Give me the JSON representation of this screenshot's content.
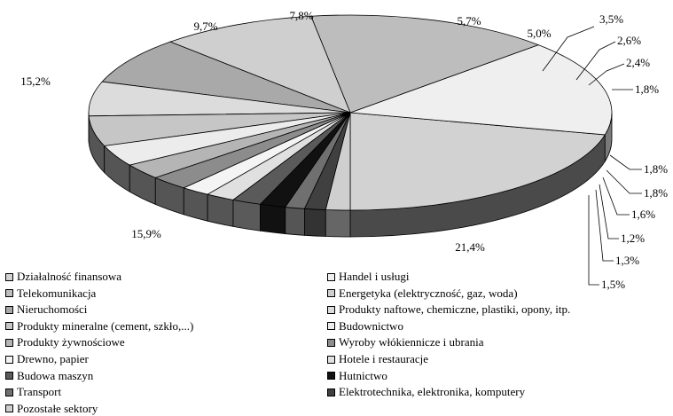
{
  "chart_data": {
    "type": "pie",
    "style": "3d-exploded-none",
    "title": "",
    "legend_position": "bottom",
    "slices": [
      {
        "label": "Działalność finansowa",
        "value": 21.4,
        "value_label": "21,4%",
        "color": "#d2d2d2",
        "side": "#4a4a4a"
      },
      {
        "label": "Handel i usługi",
        "value": 15.9,
        "value_label": "15,9%",
        "color": "#efefef",
        "side": "#7a7a7a"
      },
      {
        "label": "Telekomunikacja",
        "value": 15.2,
        "value_label": "15,2%",
        "color": "#bdbdbd",
        "side": "#3a3a3a"
      },
      {
        "label": "Energetyka (elektryczność, gaz, woda)",
        "value": 9.7,
        "value_label": "9,7%",
        "color": "#cfcfcf",
        "side": "#555555"
      },
      {
        "label": "Nieruchomości",
        "value": 7.8,
        "value_label": "7,8%",
        "color": "#a9a9a9",
        "side": "#555555"
      },
      {
        "label": "Produkty naftowe, chemiczne, plastiki, opony, itp.",
        "value": 5.7,
        "value_label": "5,7%",
        "color": "#dcdcdc",
        "side": "#555555"
      },
      {
        "label": "Produkty mineralne (cement, szkło,...)",
        "value": 5.0,
        "value_label": "5,0%",
        "color": "#c6c6c6",
        "side": "#555555"
      },
      {
        "label": "Budownictwo",
        "value": 3.5,
        "value_label": "3,5%",
        "color": "#ececec",
        "side": "#555555"
      },
      {
        "label": "Produkty żywnościowe",
        "value": 2.6,
        "value_label": "2,6%",
        "color": "#b5b5b5",
        "side": "#555555"
      },
      {
        "label": "Wyroby włókiennicze i ubrania",
        "value": 2.4,
        "value_label": "2,4%",
        "color": "#8c8c8c",
        "side": "#555555"
      },
      {
        "label": "Drewno, papier",
        "value": 1.8,
        "value_label": "1,8%",
        "color": "#f4f4f4",
        "side": "#555555"
      },
      {
        "label": "Hotele i restauracje",
        "value": 1.8,
        "value_label": "1,8%",
        "color": "#e0e0e0",
        "side": "#555555"
      },
      {
        "label": "Budowa maszyn",
        "value": 1.8,
        "value_label": "1,8%",
        "color": "#5a5a5a",
        "side": "#5a5a5a"
      },
      {
        "label": "Hutnictwo",
        "value": 1.6,
        "value_label": "1,6%",
        "color": "#111111",
        "side": "#111111"
      },
      {
        "label": "Transport",
        "value": 1.2,
        "value_label": "1,2%",
        "color": "#707070",
        "side": "#555555"
      },
      {
        "label": "Elektrotechnika, elektronika, komputery",
        "value": 1.3,
        "value_label": "1,3%",
        "color": "#404040",
        "side": "#333333"
      },
      {
        "label": "Pozostałe sektory",
        "value": 1.5,
        "value_label": "1,5%",
        "color": "#cfcfcf",
        "side": "#666666"
      }
    ],
    "legend_order": [
      "Działalność finansowa",
      "Handel i usługi",
      "Telekomunikacja",
      "Energetyka (elektryczność, gaz, woda)",
      "Nieruchomości",
      "Produkty naftowe, chemiczne, plastiki, opony, itp.",
      "Produkty mineralne (cement, szkło,...)",
      "Budownictwo",
      "Produkty żywnościowe",
      "Wyroby włókiennicze i ubrania",
      "Drewno, papier",
      "Hotele i restauracje",
      "Budowa maszyn",
      "Hutnictwo",
      "Transport",
      "Elektrotechnika, elektronika, komputery",
      "Pozostałe sektory"
    ]
  }
}
